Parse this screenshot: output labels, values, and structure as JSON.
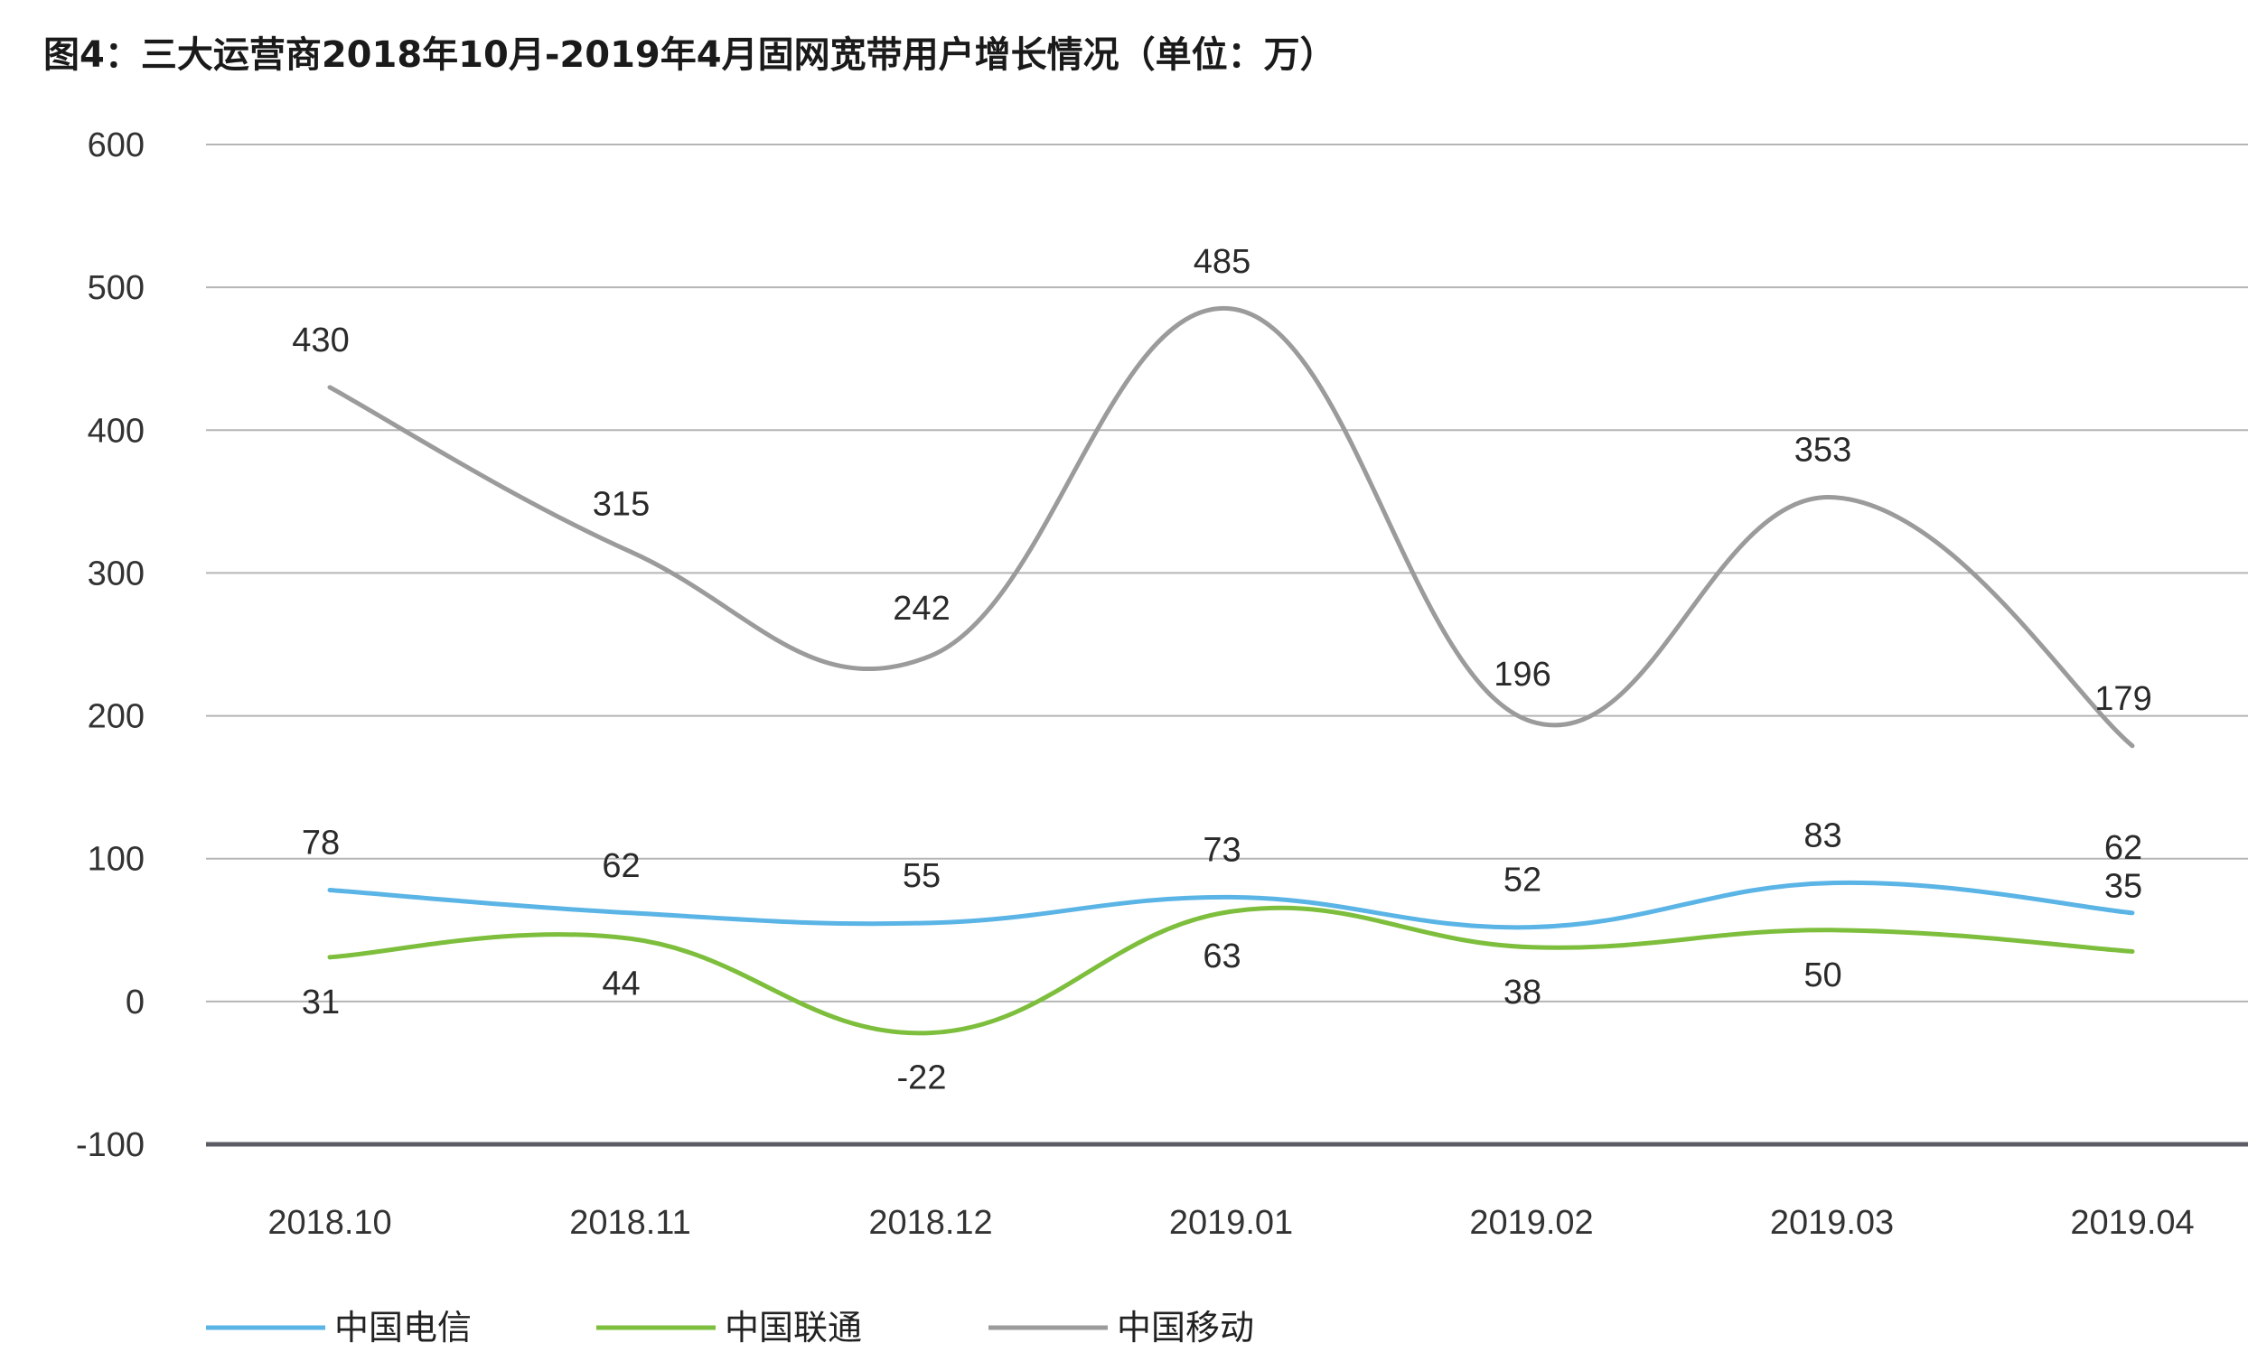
{
  "title": "图4：三大运营商2018年10月-2019年4月固网宽带用户增长情况（单位：万）",
  "chart_data": {
    "type": "line",
    "title": "图4：三大运营商2018年10月-2019年4月固网宽带用户增长情况（单位：万）",
    "categories": [
      "2018.10",
      "2018.11",
      "2018.12",
      "2019.01",
      "2019.02",
      "2019.03",
      "2019.04"
    ],
    "ylim": [
      -100,
      600
    ],
    "yticks": [
      600,
      500,
      400,
      300,
      200,
      100,
      0,
      -100
    ],
    "grid": true,
    "legend_position": "bottom-left",
    "series": [
      {
        "name": "中国电信",
        "color": "#5AB4E5",
        "values": [
          78,
          62,
          55,
          73,
          52,
          83,
          62
        ]
      },
      {
        "name": "中国联通",
        "color": "#7DBE3C",
        "values": [
          31,
          44,
          -22,
          63,
          38,
          50,
          35
        ]
      },
      {
        "name": "中国移动",
        "color": "#9B9B9B",
        "values": [
          430,
          315,
          242,
          485,
          196,
          353,
          179
        ]
      }
    ]
  }
}
